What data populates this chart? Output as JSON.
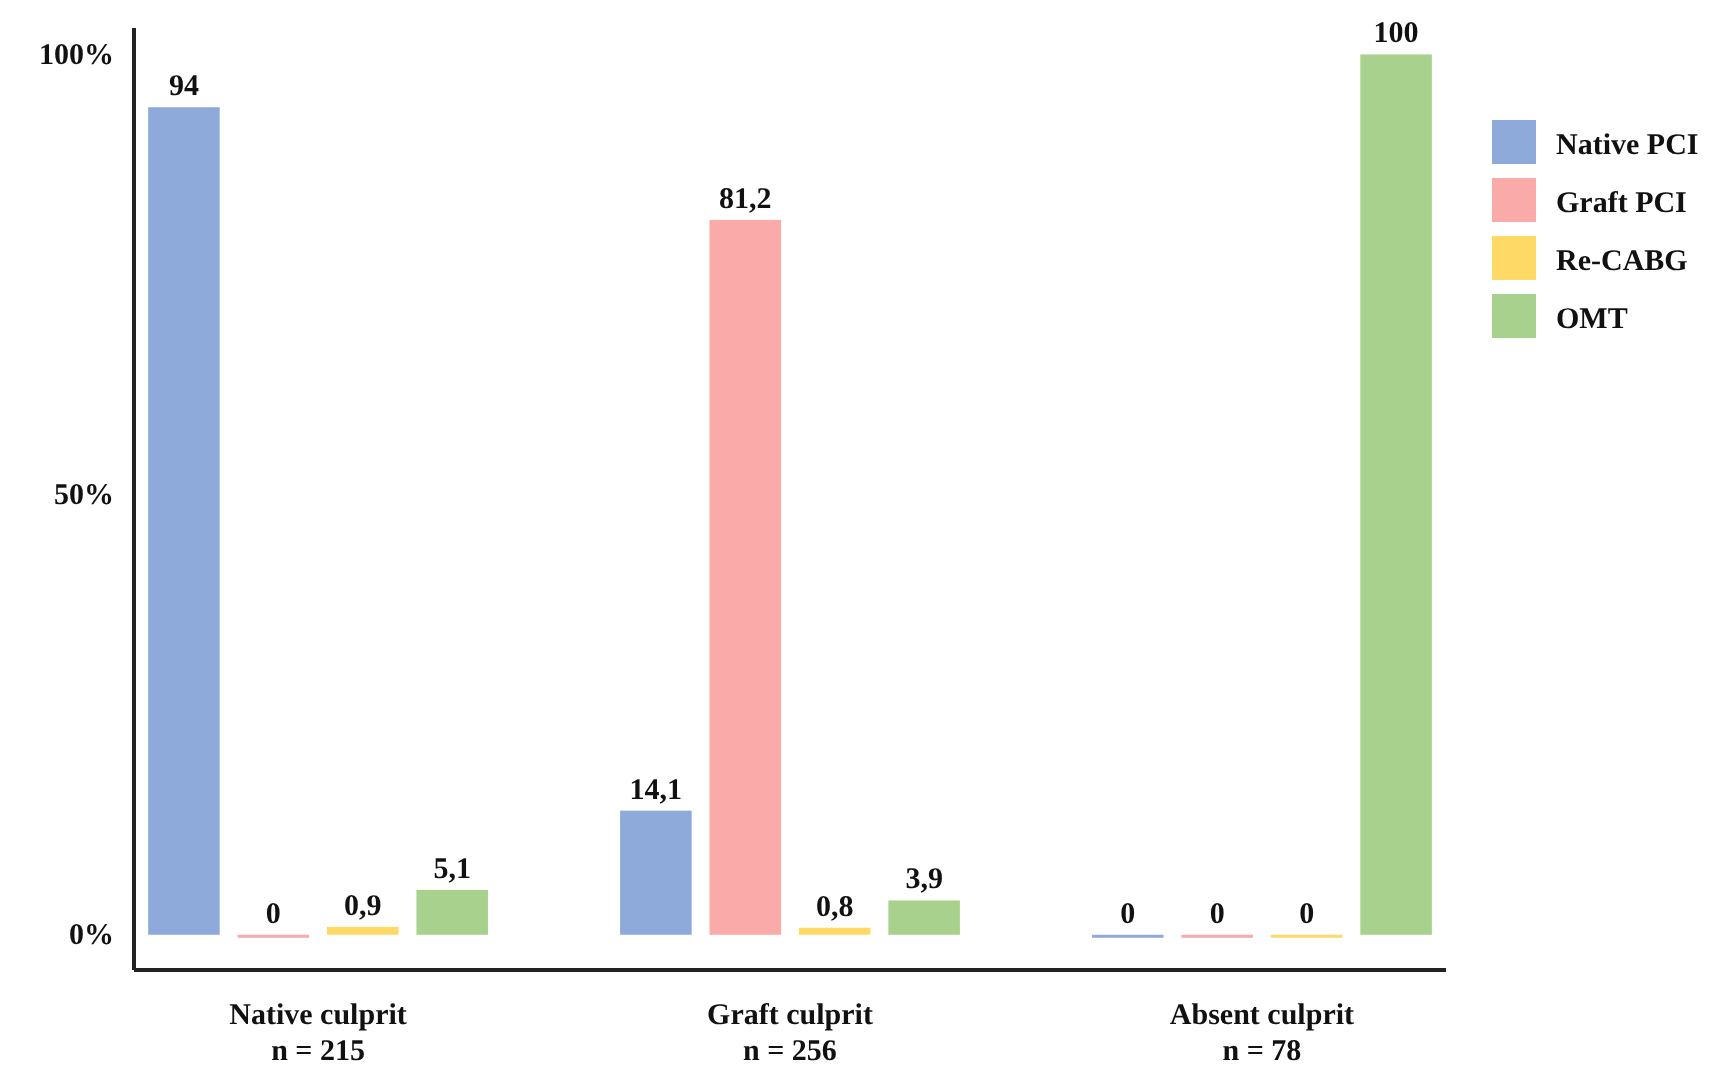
{
  "chart_data": {
    "type": "bar",
    "categories": [
      "Native culprit\nn = 215",
      "Graft culprit\nn = 256",
      "Absent culprit\nn = 78"
    ],
    "series": [
      {
        "name": "Native PCI",
        "color": "#8eaadb",
        "values": [
          94,
          14.1,
          0
        ],
        "value_labels": [
          "94",
          "14,1",
          "0"
        ]
      },
      {
        "name": "Graft PCI",
        "color": "#fbaaaa",
        "values": [
          0,
          81.2,
          0
        ],
        "value_labels": [
          "0",
          "81,2",
          "0"
        ]
      },
      {
        "name": "Re-CABG",
        "color": "#ffd966",
        "values": [
          0.9,
          0.8,
          0
        ],
        "value_labels": [
          "0,9",
          "0,8",
          "0"
        ]
      },
      {
        "name": "OMT",
        "color": "#a9d18e",
        "values": [
          5.1,
          3.9,
          100
        ],
        "value_labels": [
          "5,1",
          "3,9",
          "100"
        ]
      }
    ],
    "ylim": [
      -4,
      103
    ],
    "yticks": [
      {
        "value": 0,
        "label": "0%"
      },
      {
        "value": 50,
        "label": "50%"
      },
      {
        "value": 100,
        "label": "100%"
      }
    ],
    "grid": false,
    "legend": "right"
  }
}
